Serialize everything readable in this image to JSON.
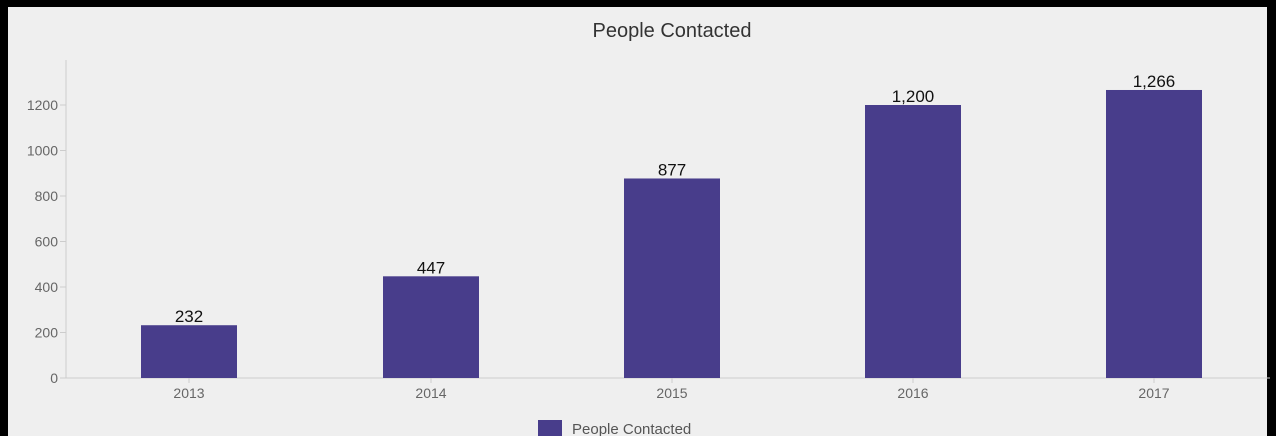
{
  "chart_data": {
    "type": "bar",
    "title": "People Contacted",
    "categories": [
      "2013",
      "2014",
      "2015",
      "2016",
      "2017"
    ],
    "series": [
      {
        "name": "People Contacted",
        "values": [
          232,
          447,
          877,
          1200,
          1266
        ],
        "labels": [
          "232",
          "447",
          "877",
          "1,200",
          "1,266"
        ],
        "color": "#483d8b"
      }
    ],
    "ylim": [
      0,
      1400
    ],
    "yticks": [
      "0",
      "200",
      "400",
      "600",
      "800",
      "1000",
      "1200"
    ],
    "xlabel": "",
    "ylabel": "",
    "grid": false,
    "legend_position": "bottom-center"
  },
  "colors": {
    "frame_background": "#efefef",
    "border": "#000000",
    "axis": "#cccccc"
  }
}
